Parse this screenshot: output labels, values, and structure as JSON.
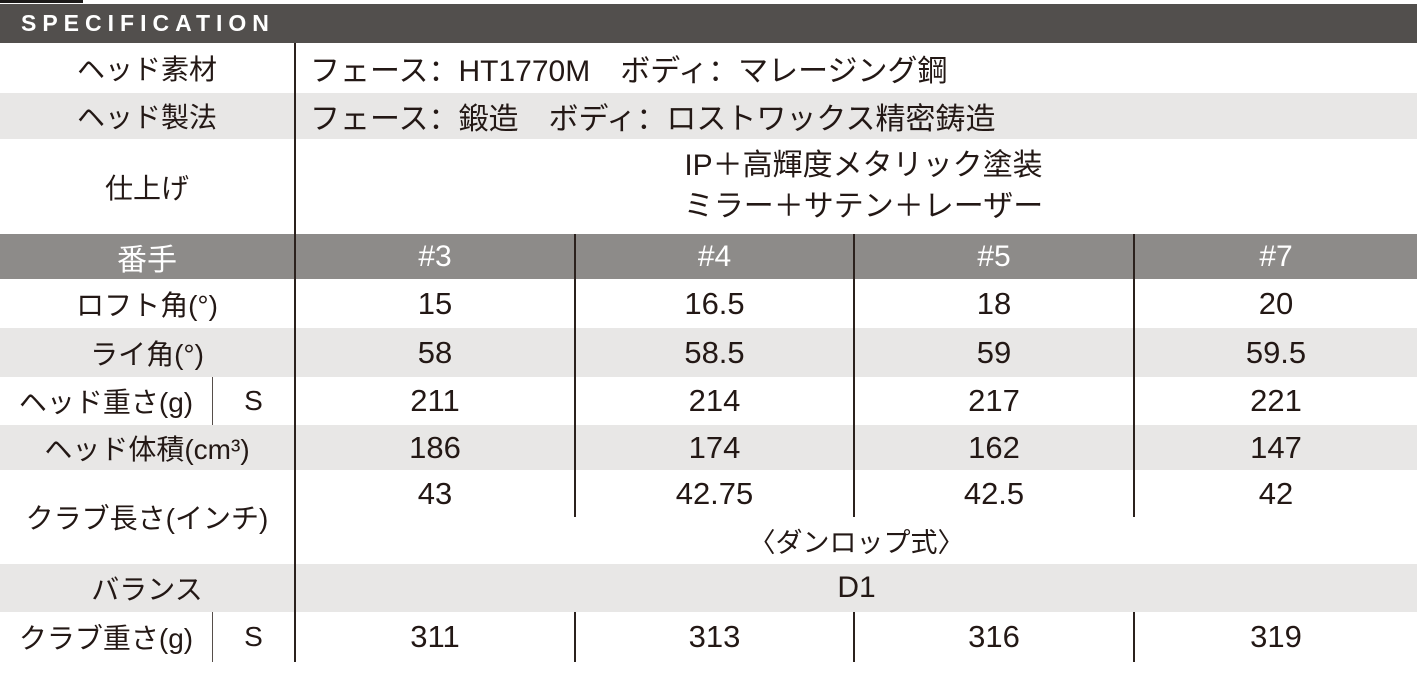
{
  "title_bar": {
    "title": "SPECIFICATION"
  },
  "colors": {
    "bar-bg": "#524f4d",
    "header-bg": "#8d8b89",
    "alt-row-bg": "#e8e7e6",
    "divider": "#2b211d",
    "text": "#231815"
  },
  "info_rows": [
    {
      "label": "ヘッド素材",
      "value": "フェース：HT1770M　ボディ：マレージング鋼"
    },
    {
      "label": "ヘッド製法",
      "value": "フェース：鍛造　ボディ：ロストワックス精密鋳造"
    },
    {
      "label": "仕上げ",
      "line1": "IP＋高輝度メタリック塗装",
      "line2": "ミラー＋サテン＋レーザー"
    }
  ],
  "table": {
    "header": {
      "label": "番手",
      "cols": [
        "#3",
        "#4",
        "#5",
        "#7"
      ]
    },
    "loft": {
      "label": "ロフト角(°)",
      "values": [
        "15",
        "16.5",
        "18",
        "20"
      ]
    },
    "lie": {
      "label": "ライ角(°)",
      "values": [
        "58",
        "58.5",
        "59",
        "59.5"
      ]
    },
    "head_weight": {
      "label": "ヘッド重さ(g)",
      "flex": "S",
      "values": [
        "211",
        "214",
        "217",
        "221"
      ]
    },
    "head_volume": {
      "label": "ヘッド体積(cm³)",
      "values": [
        "186",
        "174",
        "162",
        "147"
      ]
    },
    "club_length": {
      "label": "クラブ長さ(インチ)",
      "values": [
        "43",
        "42.75",
        "42.5",
        "42"
      ],
      "note": "〈ダンロップ式〉"
    },
    "balance": {
      "label": "バランス",
      "value": "D1"
    },
    "club_weight": {
      "label": "クラブ重さ(g)",
      "flex": "S",
      "values": [
        "311",
        "313",
        "316",
        "319"
      ]
    }
  }
}
